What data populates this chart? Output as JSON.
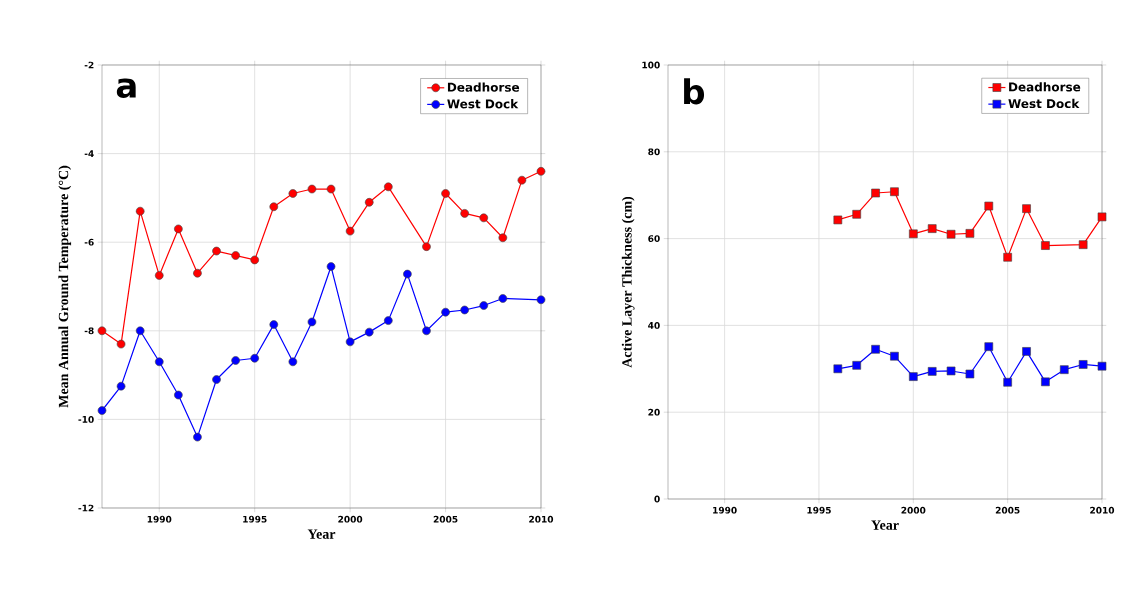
{
  "chart_data": [
    {
      "type": "line",
      "xlabel": "Year",
      "ylabel": "Mean Annual Ground Temperature (°C)",
      "annotations": [
        "a"
      ],
      "xlim": [
        1987,
        2010
      ],
      "ylim": [
        -12,
        -2
      ],
      "xticks": [
        1990,
        1995,
        2000,
        2005,
        2010
      ],
      "yticks": [
        -12,
        -10,
        -8,
        -6,
        -4,
        -2
      ],
      "grid": true,
      "legend": "top right",
      "marker": "circle",
      "line_style": "solid",
      "series": [
        {
          "name": "Deadhorse",
          "color": "#ff0000",
          "x": [
            1987,
            1988,
            1989,
            1990,
            1991,
            1992,
            1993,
            1994,
            1995,
            1996,
            1997,
            1998,
            1999,
            2000,
            2001,
            2002,
            2004,
            2005,
            2006,
            2007,
            2008,
            2009,
            2010
          ],
          "values": [
            -8.0,
            -8.3,
            -5.3,
            -6.75,
            -5.7,
            -6.7,
            -6.2,
            -6.3,
            -6.4,
            -5.2,
            -4.9,
            -4.8,
            -4.8,
            -5.75,
            -5.1,
            -4.75,
            -6.1,
            -4.9,
            -5.35,
            -5.45,
            -5.9,
            -4.6,
            -4.4
          ]
        },
        {
          "name": "West Dock",
          "color": "#0000ff",
          "x": [
            1987,
            1988,
            1989,
            1990,
            1991,
            1992,
            1993,
            1994,
            1995,
            1996,
            1997,
            1998,
            1999,
            2000,
            2001,
            2002,
            2003,
            2004,
            2005,
            2006,
            2007,
            2008,
            2010
          ],
          "values": [
            -9.8,
            -9.25,
            -8.0,
            -8.7,
            -9.45,
            -10.4,
            -9.1,
            -8.67,
            -8.62,
            -7.86,
            -8.7,
            -7.8,
            -6.55,
            -8.25,
            -8.03,
            -7.77,
            -6.72,
            -8.0,
            -7.58,
            -7.53,
            -7.43,
            -7.27,
            -7.3
          ]
        }
      ]
    },
    {
      "type": "line",
      "xlabel": "Year",
      "ylabel": "Active Layer Thickness (cm)",
      "annotations": [
        "b"
      ],
      "xlim": [
        1987,
        2010
      ],
      "ylim": [
        0,
        100
      ],
      "xticks": [
        1990,
        1995,
        2000,
        2005,
        2010
      ],
      "yticks": [
        0,
        20,
        40,
        60,
        80,
        100
      ],
      "grid": true,
      "legend": "top right",
      "marker": "square",
      "line_style": "solid",
      "series": [
        {
          "name": "Deadhorse",
          "color": "#ff0000",
          "x": [
            1996,
            1997,
            1998,
            1999,
            2000,
            2001,
            2002,
            2003,
            2004,
            2005,
            2006,
            2007,
            2009,
            2010
          ],
          "values": [
            64.3,
            65.6,
            70.5,
            70.8,
            61.1,
            62.3,
            61.0,
            61.2,
            67.5,
            55.7,
            66.9,
            58.4,
            58.6,
            65.0
          ]
        },
        {
          "name": "West Dock",
          "color": "#0000ff",
          "x": [
            1996,
            1997,
            1998,
            1999,
            2000,
            2001,
            2002,
            2003,
            2004,
            2005,
            2006,
            2007,
            2008,
            2009,
            2010
          ],
          "values": [
            30.0,
            30.8,
            34.5,
            32.9,
            28.2,
            29.4,
            29.5,
            28.8,
            35.1,
            26.9,
            34.0,
            27.0,
            29.8,
            31.0,
            30.6
          ]
        }
      ]
    }
  ]
}
